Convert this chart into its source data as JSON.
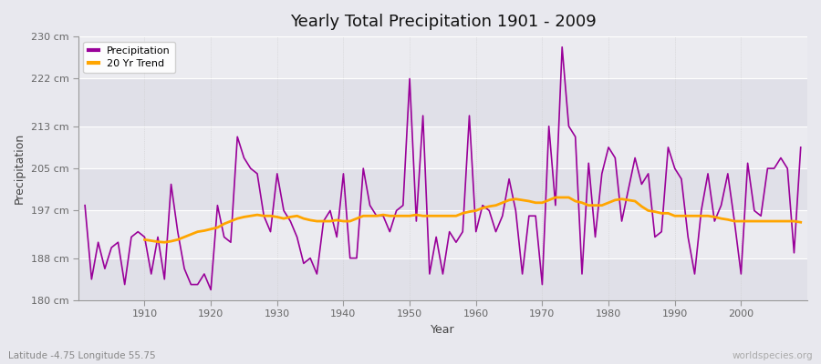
{
  "title": "Yearly Total Precipitation 1901 - 2009",
  "xlabel": "Year",
  "ylabel": "Precipitation",
  "subtitle": "Latitude -4.75 Longitude 55.75",
  "watermark": "worldspecies.org",
  "years": [
    1901,
    1902,
    1903,
    1904,
    1905,
    1906,
    1907,
    1908,
    1909,
    1910,
    1911,
    1912,
    1913,
    1914,
    1915,
    1916,
    1917,
    1918,
    1919,
    1920,
    1921,
    1922,
    1923,
    1924,
    1925,
    1926,
    1927,
    1928,
    1929,
    1930,
    1931,
    1932,
    1933,
    1934,
    1935,
    1936,
    1937,
    1938,
    1939,
    1940,
    1941,
    1942,
    1943,
    1944,
    1945,
    1946,
    1947,
    1948,
    1949,
    1950,
    1951,
    1952,
    1953,
    1954,
    1955,
    1956,
    1957,
    1958,
    1959,
    1960,
    1961,
    1962,
    1963,
    1964,
    1965,
    1966,
    1967,
    1968,
    1969,
    1970,
    1971,
    1972,
    1973,
    1974,
    1975,
    1976,
    1977,
    1978,
    1979,
    1980,
    1981,
    1982,
    1983,
    1984,
    1985,
    1986,
    1987,
    1988,
    1989,
    1990,
    1991,
    1992,
    1993,
    1994,
    1995,
    1996,
    1997,
    1998,
    1999,
    2000,
    2001,
    2002,
    2003,
    2004,
    2005,
    2006,
    2007,
    2008,
    2009
  ],
  "precip": [
    198,
    184,
    191,
    186,
    190,
    191,
    183,
    192,
    193,
    192,
    185,
    192,
    184,
    202,
    193,
    186,
    183,
    183,
    185,
    182,
    198,
    192,
    191,
    211,
    207,
    205,
    204,
    196,
    193,
    204,
    197,
    195,
    192,
    187,
    188,
    185,
    195,
    197,
    192,
    204,
    188,
    188,
    205,
    198,
    196,
    196,
    193,
    197,
    198,
    222,
    195,
    215,
    185,
    192,
    185,
    193,
    191,
    193,
    215,
    193,
    198,
    197,
    193,
    196,
    203,
    197,
    185,
    196,
    196,
    183,
    213,
    198,
    228,
    213,
    211,
    185,
    206,
    192,
    204,
    209,
    207,
    195,
    201,
    207,
    202,
    204,
    192,
    193,
    209,
    205,
    203,
    192,
    185,
    197,
    204,
    195,
    198,
    204,
    195,
    185,
    206,
    197,
    196,
    205,
    205,
    207,
    205,
    189,
    209
  ],
  "trend_years": [
    1910,
    1911,
    1912,
    1913,
    1914,
    1915,
    1916,
    1917,
    1918,
    1919,
    1920,
    1921,
    1922,
    1923,
    1924,
    1925,
    1926,
    1927,
    1928,
    1929,
    1930,
    1931,
    1932,
    1933,
    1934,
    1935,
    1936,
    1937,
    1938,
    1939,
    1940,
    1941,
    1942,
    1943,
    1944,
    1945,
    1946,
    1947,
    1948,
    1949,
    1950,
    1951,
    1952,
    1953,
    1954,
    1955,
    1956,
    1957,
    1958,
    1959,
    1960,
    1961,
    1962,
    1963,
    1964,
    1965,
    1966,
    1967,
    1968,
    1969,
    1970,
    1971,
    1972,
    1973,
    1974,
    1975,
    1976,
    1977,
    1978,
    1979,
    1980,
    1981,
    1982,
    1983,
    1984,
    1985,
    1986,
    1987,
    1988,
    1989,
    1990,
    1991,
    1992,
    1993,
    1994,
    1995,
    1996,
    1997,
    1998,
    1999,
    2000,
    2001,
    2002,
    2003,
    2004,
    2005,
    2006,
    2007,
    2008,
    2009
  ],
  "trend": [
    191.5,
    191.3,
    191.1,
    191.0,
    191.2,
    191.5,
    192.0,
    192.5,
    193.0,
    193.2,
    193.5,
    193.8,
    194.5,
    195.0,
    195.5,
    195.8,
    196.0,
    196.2,
    196.0,
    196.0,
    195.8,
    195.5,
    195.8,
    196.0,
    195.5,
    195.2,
    195.0,
    195.0,
    195.0,
    195.2,
    195.0,
    195.0,
    195.5,
    196.0,
    196.0,
    196.0,
    196.2,
    196.0,
    196.0,
    196.0,
    196.0,
    196.2,
    196.0,
    196.0,
    196.0,
    196.0,
    196.0,
    196.0,
    196.5,
    196.8,
    197.0,
    197.5,
    197.8,
    198.0,
    198.5,
    199.0,
    199.2,
    199.0,
    198.8,
    198.5,
    198.5,
    199.0,
    199.5,
    199.5,
    199.5,
    198.8,
    198.5,
    198.0,
    198.0,
    198.0,
    198.5,
    199.0,
    199.2,
    199.0,
    198.8,
    197.8,
    197.0,
    196.8,
    196.5,
    196.5,
    196.0,
    196.0,
    196.0,
    196.0,
    196.0,
    196.0,
    195.8,
    195.5,
    195.3,
    195.0,
    195.0,
    195.0,
    195.0,
    195.0,
    195.0,
    195.0,
    195.0,
    195.0,
    195.0,
    194.8
  ],
  "precip_color": "#990099",
  "trend_color": "#FFA500",
  "bg_color": "#e8e8ee",
  "plot_bg_color": "#ebebf0",
  "ylim": [
    180,
    230
  ],
  "yticks": [
    180,
    188,
    197,
    205,
    213,
    222,
    230
  ],
  "ytick_labels": [
    "180 cm",
    "188 cm",
    "197 cm",
    "205 cm",
    "213 cm",
    "222 cm",
    "230 cm"
  ],
  "xticks": [
    1910,
    1920,
    1930,
    1940,
    1950,
    1960,
    1970,
    1980,
    1990,
    2000
  ],
  "legend_precip": "Precipitation",
  "legend_trend": "20 Yr Trend"
}
